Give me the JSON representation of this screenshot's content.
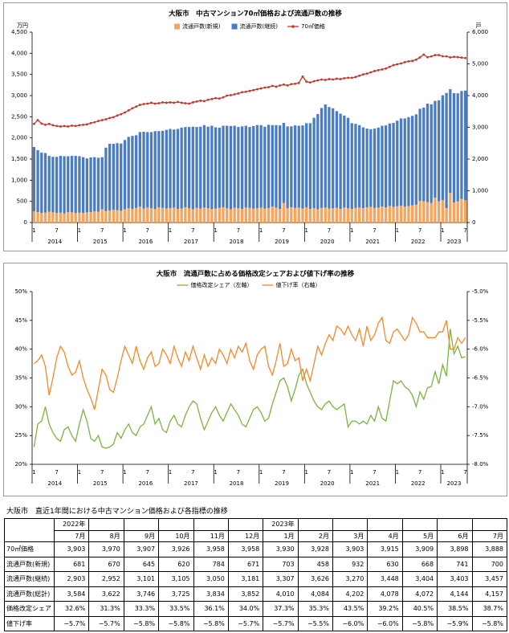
{
  "chart_data": [
    {
      "type": "combo",
      "title": "大阪市　中古マンション70㎡価格および流通戸数の推移",
      "ylabel": "万円",
      "y2label": "戸",
      "categories": [
        "1",
        null,
        null,
        null,
        null,
        null,
        "7",
        null,
        null,
        null,
        null,
        null,
        "1",
        null,
        null,
        null,
        null,
        null,
        "7",
        null,
        null,
        null,
        null,
        null,
        "1",
        null,
        null,
        null,
        null,
        null,
        "7",
        null,
        null,
        null,
        null,
        null,
        "1",
        null,
        null,
        null,
        null,
        null,
        "7",
        null,
        null,
        null,
        null,
        null,
        "1",
        null,
        null,
        null,
        null,
        null,
        "7",
        null,
        null,
        null,
        null,
        null,
        "1",
        null,
        null,
        null,
        null,
        null,
        "7",
        null,
        null,
        null,
        null,
        null,
        "1",
        null,
        null,
        null,
        null,
        null,
        "7",
        null,
        null,
        null,
        null,
        null,
        "1",
        null,
        null,
        null,
        null,
        null,
        "7",
        null,
        null,
        null,
        null,
        null,
        "1",
        null,
        null,
        null,
        null,
        null,
        "7",
        null,
        null,
        null,
        null,
        null,
        "1",
        null,
        null,
        null,
        null,
        null,
        "7"
      ],
      "years": [
        "2014",
        "2015",
        "2016",
        "2017",
        "2018",
        "2019",
        "2020",
        "2021",
        "2022",
        "2023"
      ],
      "ylim": [
        0,
        4500
      ],
      "yticks": [
        0,
        500,
        {
          "value": 1000,
          "label": "1,000"
        },
        {
          "value": 1500,
          "label": "1,500"
        },
        {
          "value": 2000,
          "label": "2,000"
        },
        {
          "value": 2500,
          "label": "2,500"
        },
        {
          "value": 3000,
          "label": "3,000"
        },
        {
          "value": 3500,
          "label": "3,500"
        },
        {
          "value": 4000,
          "label": "4,000"
        },
        {
          "value": 4500,
          "label": "4,500"
        }
      ],
      "y2lim": [
        0,
        6000
      ],
      "y2ticks": [
        0,
        {
          "value": 1000,
          "label": "1,000"
        },
        {
          "value": 2000,
          "label": "2,000"
        },
        {
          "value": 3000,
          "label": "3,000"
        },
        {
          "value": 4000,
          "label": "4,000"
        },
        {
          "value": 5000,
          "label": "5,000"
        },
        {
          "value": 6000,
          "label": "6,000"
        }
      ],
      "stacked": true,
      "series": [
        {
          "name": "流通戸数(新規)",
          "type": "bar",
          "axis": "y2",
          "color": "#f7a35c",
          "values": [
            350,
            330,
            300,
            310,
            340,
            320,
            300,
            310,
            290,
            330,
            320,
            300,
            310,
            300,
            320,
            330,
            350,
            340,
            420,
            360,
            380,
            400,
            390,
            370,
            420,
            450,
            430,
            460,
            500,
            440,
            470,
            450,
            430,
            480,
            460,
            440,
            450,
            470,
            430,
            440,
            480,
            450,
            420,
            460,
            440,
            470,
            450,
            430,
            440,
            460,
            480,
            450,
            420,
            470,
            450,
            430,
            470,
            460,
            440,
            450,
            470,
            440,
            460,
            500,
            470,
            430,
            620,
            450,
            480,
            460,
            470,
            440,
            480,
            430,
            450,
            420,
            460,
            470,
            440,
            450,
            460,
            430,
            470,
            450,
            430,
            460,
            470,
            450,
            480,
            490,
            460,
            470,
            500,
            480,
            520,
            490,
            510,
            530,
            500,
            520,
            540,
            560,
            681,
            670,
            645,
            620,
            784,
            671,
            703,
            458,
            932,
            630,
            668,
            741,
            700
          ]
        },
        {
          "name": "流通戸数(継続)",
          "type": "bar",
          "axis": "y2",
          "color": "#4a7cc4",
          "values": [
            2030,
            1950,
            1900,
            1880,
            1760,
            1750,
            1770,
            1790,
            1800,
            1760,
            1780,
            1800,
            1780,
            1760,
            1700,
            1720,
            1710,
            1700,
            1640,
            2000,
            2100,
            2080,
            2110,
            2120,
            2180,
            2250,
            2300,
            2290,
            2350,
            2420,
            2380,
            2400,
            2450,
            2400,
            2430,
            2480,
            2500,
            2460,
            2520,
            2550,
            2530,
            2560,
            2600,
            2550,
            2580,
            2600,
            2570,
            2620,
            2560,
            2530,
            2570,
            2600,
            2620,
            2580,
            2560,
            2600,
            2580,
            2550,
            2600,
            2620,
            2600,
            2580,
            2620,
            2570,
            2600,
            2630,
            2520,
            2580,
            2550,
            2600,
            2580,
            2620,
            2650,
            2700,
            2850,
            3000,
            3150,
            3250,
            3200,
            3150,
            3050,
            3000,
            2900,
            2850,
            2700,
            2650,
            2600,
            2550,
            2480,
            2450,
            2500,
            2520,
            2550,
            2580,
            2600,
            2650,
            2700,
            2750,
            2780,
            2800,
            2820,
            2850,
            2903,
            2952,
            3101,
            3105,
            3050,
            3181,
            3307,
            3626,
            3270,
            3448,
            3404,
            3403,
            3457
          ]
        },
        {
          "name": "70㎡価格",
          "type": "line",
          "axis": "y",
          "color": "#c0392b",
          "markers": true,
          "values": [
            2330,
            2420,
            2340,
            2310,
            2330,
            2300,
            2280,
            2270,
            2280,
            2270,
            2290,
            2280,
            2300,
            2310,
            2320,
            2350,
            2370,
            2400,
            2420,
            2440,
            2470,
            2490,
            2530,
            2560,
            2600,
            2650,
            2700,
            2740,
            2780,
            2800,
            2810,
            2830,
            2810,
            2820,
            2840,
            2830,
            2840,
            2830,
            2850,
            2830,
            2820,
            2810,
            2840,
            2860,
            2880,
            2870,
            2900,
            2920,
            2940,
            2930,
            2960,
            3000,
            3010,
            3030,
            3050,
            3080,
            3090,
            3110,
            3130,
            3150,
            3170,
            3190,
            3200,
            3230,
            3210,
            3240,
            3260,
            3240,
            3270,
            3280,
            3300,
            3450,
            3330,
            3310,
            3340,
            3360,
            3380,
            3370,
            3390,
            3380,
            3400,
            3390,
            3410,
            3420,
            3420,
            3440,
            3470,
            3500,
            3520,
            3550,
            3580,
            3600,
            3620,
            3640,
            3680,
            3720,
            3740,
            3760,
            3790,
            3810,
            3820,
            3850,
            3903,
            3970,
            3907,
            3926,
            3958,
            3958,
            3930,
            3928,
            3903,
            3915,
            3909,
            3898,
            3888
          ]
        }
      ]
    },
    {
      "type": "line",
      "title": "大阪市　流通戸数に占める価格改定シェアおよび値下げ率の推移",
      "categories": [
        "1",
        null,
        null,
        null,
        null,
        null,
        "7",
        null,
        null,
        null,
        null,
        null,
        "1",
        null,
        null,
        null,
        null,
        null,
        "7",
        null,
        null,
        null,
        null,
        null,
        "1",
        null,
        null,
        null,
        null,
        null,
        "7",
        null,
        null,
        null,
        null,
        null,
        "1",
        null,
        null,
        null,
        null,
        null,
        "7",
        null,
        null,
        null,
        null,
        null,
        "1",
        null,
        null,
        null,
        null,
        null,
        "7",
        null,
        null,
        null,
        null,
        null,
        "1",
        null,
        null,
        null,
        null,
        null,
        "7",
        null,
        null,
        null,
        null,
        null,
        "1",
        null,
        null,
        null,
        null,
        null,
        "7",
        null,
        null,
        null,
        null,
        null,
        "1",
        null,
        null,
        null,
        null,
        null,
        "7",
        null,
        null,
        null,
        null,
        null,
        "1",
        null,
        null,
        null,
        null,
        null,
        "7",
        null,
        null,
        null,
        null,
        null,
        "1",
        null,
        null,
        null,
        null,
        null,
        "7"
      ],
      "years": [
        "2014",
        "2015",
        "2016",
        "2017",
        "2018",
        "2019",
        "2020",
        "2021",
        "2022",
        "2023"
      ],
      "ylim": [
        20,
        50
      ],
      "yticks": [
        {
          "value": 20,
          "label": "20%"
        },
        {
          "value": 25,
          "label": "25%"
        },
        {
          "value": 30,
          "label": "30%"
        },
        {
          "value": 35,
          "label": "35%"
        },
        {
          "value": 40,
          "label": "40%"
        },
        {
          "value": 45,
          "label": "45%"
        },
        {
          "value": 50,
          "label": "50%"
        }
      ],
      "y2lim": [
        -8,
        -5
      ],
      "y2ticks": [
        {
          "value": -8,
          "label": "-8.0%"
        },
        {
          "value": -7.5,
          "label": "-7.5%"
        },
        {
          "value": -7,
          "label": "-7.0%"
        },
        {
          "value": -6.5,
          "label": "-6.5%"
        },
        {
          "value": -6,
          "label": "-6.0%"
        },
        {
          "value": -5.5,
          "label": "-5.5%"
        },
        {
          "value": -5,
          "label": "-5.0%"
        }
      ],
      "series": [
        {
          "name": "価格改定シェア（左軸）",
          "type": "line",
          "axis": "y",
          "color": "#7cb342",
          "values": [
            23.0,
            27.0,
            27.5,
            30.0,
            27.0,
            25.5,
            24.5,
            24.0,
            26.0,
            26.5,
            25.0,
            24.0,
            27.0,
            29.5,
            27.5,
            24.5,
            24.0,
            25.0,
            23.0,
            22.8,
            23.0,
            23.5,
            25.5,
            24.5,
            26.0,
            27.0,
            25.5,
            25.0,
            26.5,
            27.0,
            28.5,
            30.0,
            27.0,
            28.0,
            26.0,
            25.5,
            27.5,
            28.5,
            27.0,
            26.5,
            28.5,
            30.0,
            31.0,
            30.5,
            28.0,
            26.0,
            27.5,
            29.0,
            30.0,
            28.5,
            27.5,
            29.0,
            30.5,
            29.5,
            28.5,
            27.0,
            26.5,
            28.0,
            29.5,
            30.0,
            29.0,
            27.5,
            28.0,
            30.5,
            32.5,
            34.5,
            35.0,
            33.5,
            31.0,
            33.0,
            35.5,
            36.5,
            34.0,
            32.5,
            31.0,
            30.0,
            29.5,
            30.5,
            31.0,
            30.0,
            29.5,
            30.0,
            30.5,
            26.5,
            27.5,
            27.5,
            27.0,
            27.5,
            27.0,
            28.5,
            27.5,
            30.0,
            28.0,
            27.5,
            31.0,
            34.5,
            34.0,
            34.5,
            33.5,
            33.0,
            32.0,
            30.0,
            32.6,
            31.3,
            33.3,
            33.5,
            36.1,
            34.0,
            37.3,
            35.3,
            43.5,
            39.2,
            40.5,
            38.5,
            38.7
          ]
        },
        {
          "name": "値下げ率（右軸）",
          "type": "line",
          "axis": "y2",
          "color": "#f08a2c",
          "values": [
            -6.25,
            -6.2,
            -6.1,
            -6.3,
            -6.8,
            -6.5,
            -6.15,
            -5.95,
            -6.05,
            -6.3,
            -6.45,
            -6.4,
            -6.2,
            -6.5,
            -6.7,
            -6.85,
            -7.05,
            -6.7,
            -6.35,
            -6.45,
            -6.7,
            -6.75,
            -6.5,
            -6.2,
            -5.95,
            -6.1,
            -6.25,
            -5.95,
            -6.2,
            -6.35,
            -6.15,
            -6.05,
            -6.3,
            -6.25,
            -6.0,
            -6.1,
            -6.25,
            -5.95,
            -6.15,
            -6.3,
            -6.05,
            -6.2,
            -5.95,
            -6.15,
            -6.35,
            -6.1,
            -6.3,
            -6.15,
            -6.25,
            -6.0,
            -6.1,
            -6.25,
            -6.0,
            -6.15,
            -5.95,
            -6.05,
            -5.9,
            -6.2,
            -6.35,
            -6.1,
            -6.0,
            -5.95,
            -6.3,
            -6.45,
            -6.2,
            -5.9,
            -6.3,
            -6.25,
            -6.0,
            -6.2,
            -6.15,
            -6.55,
            -6.35,
            -6.55,
            -6.25,
            -5.95,
            -6.1,
            -5.9,
            -5.75,
            -5.85,
            -5.6,
            -5.65,
            -5.75,
            -5.6,
            -5.75,
            -5.85,
            -5.65,
            -5.95,
            -5.6,
            -5.85,
            -5.75,
            -5.55,
            -5.45,
            -5.85,
            -5.9,
            -5.7,
            -5.65,
            -5.75,
            -5.85,
            -5.75,
            -5.45,
            -5.55,
            -5.7,
            -5.7,
            -5.8,
            -5.8,
            -5.8,
            -5.7,
            -5.7,
            -5.5,
            -6.0,
            -6.0,
            -5.8,
            -5.9,
            -5.8
          ]
        }
      ]
    }
  ],
  "table": {
    "title": "大阪市　直近1年間における中古マンション価格および各指標の推移",
    "header_years": [
      "2022年",
      null,
      null,
      null,
      null,
      null,
      "2023年",
      null,
      null,
      null,
      null,
      null,
      null
    ],
    "months": [
      "7月",
      "8月",
      "9月",
      "10月",
      "11月",
      "12月",
      "1月",
      "2月",
      "3月",
      "4月",
      "5月",
      "6月",
      "7月"
    ],
    "rows": [
      {
        "label": "70㎡価格",
        "values": [
          "3,903",
          "3,970",
          "3,907",
          "3,926",
          "3,958",
          "3,958",
          "3,930",
          "3,928",
          "3,903",
          "3,915",
          "3,909",
          "3,898",
          "3,888"
        ]
      },
      {
        "label": "流通戸数(新規)",
        "values": [
          "681",
          "670",
          "645",
          "620",
          "784",
          "671",
          "703",
          "458",
          "932",
          "630",
          "668",
          "741",
          "700"
        ]
      },
      {
        "label": "流通戸数(継続)",
        "values": [
          "2,903",
          "2,952",
          "3,101",
          "3,105",
          "3,050",
          "3,181",
          "3,307",
          "3,626",
          "3,270",
          "3,448",
          "3,404",
          "3,403",
          "3,457"
        ]
      },
      {
        "label": "流通戸数(総計)",
        "values": [
          "3,584",
          "3,622",
          "3,746",
          "3,725",
          "3,834",
          "3,852",
          "4,010",
          "4,084",
          "4,202",
          "4,078",
          "4,072",
          "4,144",
          "4,157"
        ]
      },
      {
        "label": "価格改定シェア",
        "values": [
          "32.6%",
          "31.3%",
          "33.3%",
          "33.5%",
          "36.1%",
          "34.0%",
          "37.3%",
          "35.3%",
          "43.5%",
          "39.2%",
          "40.5%",
          "38.5%",
          "38.7%"
        ]
      },
      {
        "label": "値下げ率",
        "values": [
          "−5.7%",
          "−5.7%",
          "−5.8%",
          "−5.8%",
          "−5.8%",
          "−5.7%",
          "−5.7%",
          "−5.5%",
          "−6.0%",
          "−6.0%",
          "−5.8%",
          "−5.9%",
          "−5.8%"
        ]
      }
    ]
  }
}
